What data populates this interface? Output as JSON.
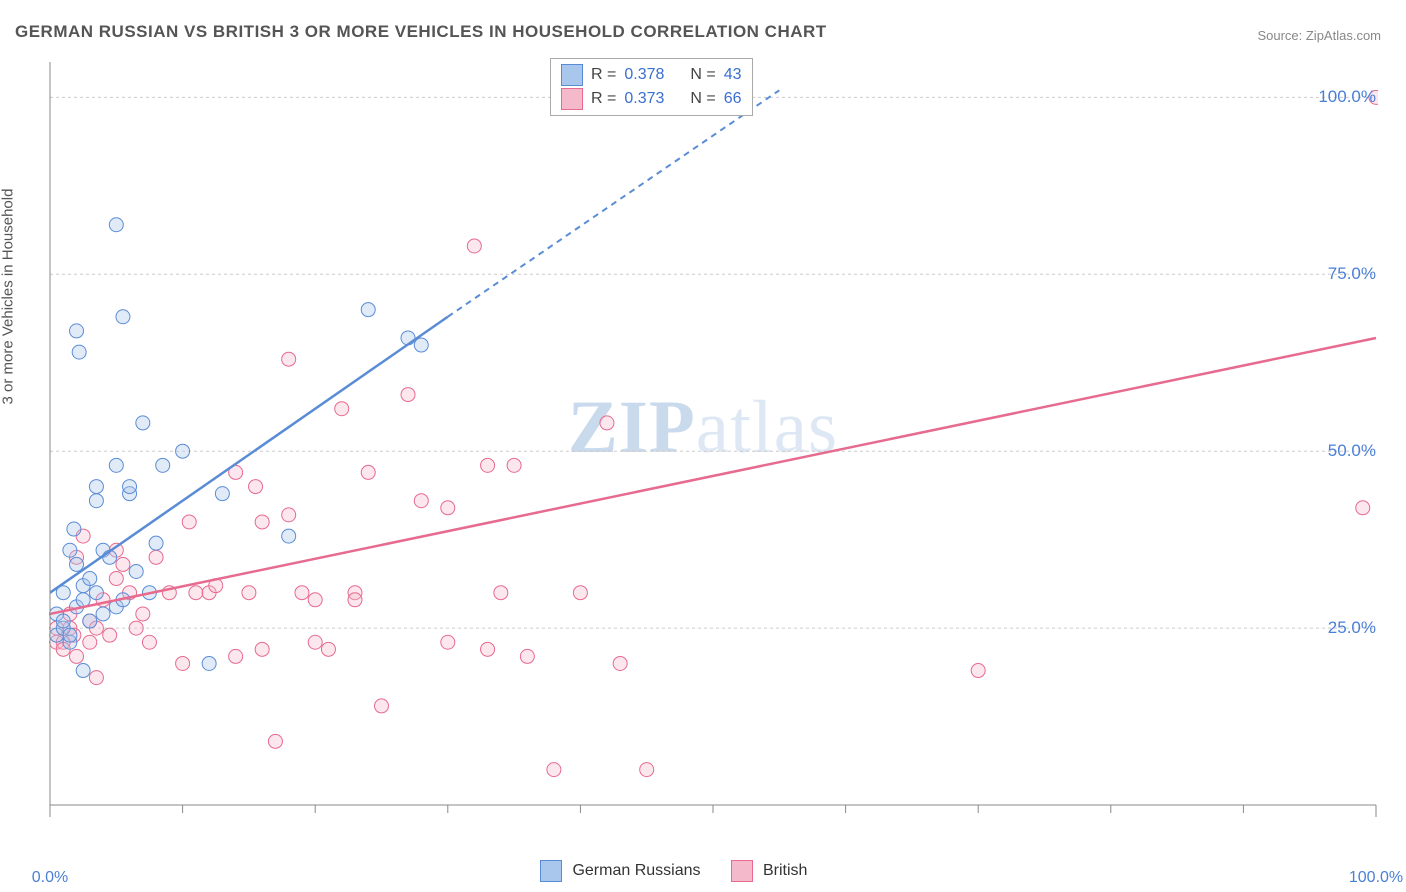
{
  "title": "GERMAN RUSSIAN VS BRITISH 3 OR MORE VEHICLES IN HOUSEHOLD CORRELATION CHART",
  "source_label": "Source: ZipAtlas.com",
  "ylabel": "3 or more Vehicles in Household",
  "watermark_a": "ZIP",
  "watermark_b": "atlas",
  "chart": {
    "type": "scatter",
    "xlim": [
      0,
      100
    ],
    "ylim": [
      0,
      105
    ],
    "x_ticks_major": [
      0,
      100
    ],
    "x_tick_labels": [
      "0.0%",
      "100.0%"
    ],
    "x_minor_ticks": [
      10,
      20,
      30,
      40,
      50,
      60,
      70,
      80,
      90
    ],
    "y_gridlines": [
      25,
      50,
      75,
      100
    ],
    "y_tick_labels": [
      "25.0%",
      "50.0%",
      "75.0%",
      "100.0%"
    ],
    "background_color": "#ffffff",
    "grid_color": "#cccccc",
    "axis_color": "#888888",
    "marker_radius": 7,
    "series": [
      {
        "name": "German Russians",
        "color_stroke": "#5a8cd6",
        "color_fill": "#a9c6ec",
        "r_value": "0.378",
        "n_value": "43",
        "trend": {
          "x1": 0,
          "y1": 30,
          "x2": 30,
          "y2": 69,
          "dashed_to_x": 55,
          "dashed_to_y": 101
        },
        "points": [
          [
            0.5,
            27
          ],
          [
            0.5,
            24
          ],
          [
            1,
            25
          ],
          [
            1,
            30
          ],
          [
            1,
            26
          ],
          [
            1.5,
            23
          ],
          [
            1.5,
            24
          ],
          [
            1.5,
            36
          ],
          [
            1.8,
            39
          ],
          [
            2,
            28
          ],
          [
            2,
            67
          ],
          [
            2,
            34
          ],
          [
            2.2,
            64
          ],
          [
            2.5,
            29
          ],
          [
            2.5,
            19
          ],
          [
            2.5,
            31
          ],
          [
            3,
            32
          ],
          [
            3,
            26
          ],
          [
            3.5,
            30
          ],
          [
            3.5,
            43
          ],
          [
            3.5,
            45
          ],
          [
            4,
            27
          ],
          [
            4,
            36
          ],
          [
            4.5,
            35
          ],
          [
            5,
            48
          ],
          [
            5,
            28
          ],
          [
            5,
            82
          ],
          [
            5.5,
            29
          ],
          [
            5.5,
            69
          ],
          [
            6,
            44
          ],
          [
            6,
            45
          ],
          [
            6.5,
            33
          ],
          [
            7,
            54
          ],
          [
            7.5,
            30
          ],
          [
            8,
            37
          ],
          [
            8.5,
            48
          ],
          [
            10,
            50
          ],
          [
            12,
            20
          ],
          [
            13,
            44
          ],
          [
            18,
            38
          ],
          [
            24,
            70
          ],
          [
            27,
            66
          ],
          [
            28,
            65
          ]
        ]
      },
      {
        "name": "British",
        "color_stroke": "#e76a8f",
        "color_fill": "#f4b9cb",
        "r_value": "0.373",
        "n_value": "66",
        "trend": {
          "x1": 0,
          "y1": 27,
          "x2": 100,
          "y2": 66
        },
        "points": [
          [
            0.5,
            25
          ],
          [
            0.5,
            23
          ],
          [
            1,
            23
          ],
          [
            1,
            22
          ],
          [
            1.5,
            27
          ],
          [
            1.5,
            25
          ],
          [
            1.8,
            24
          ],
          [
            2,
            21
          ],
          [
            2,
            35
          ],
          [
            2.5,
            38
          ],
          [
            3,
            26
          ],
          [
            3,
            23
          ],
          [
            3.5,
            25
          ],
          [
            3.5,
            18
          ],
          [
            4,
            29
          ],
          [
            4.5,
            24
          ],
          [
            5,
            32
          ],
          [
            5,
            36
          ],
          [
            5.5,
            34
          ],
          [
            6,
            30
          ],
          [
            6.5,
            25
          ],
          [
            7,
            27
          ],
          [
            7.5,
            23
          ],
          [
            8,
            35
          ],
          [
            9,
            30
          ],
          [
            10,
            20
          ],
          [
            10.5,
            40
          ],
          [
            11,
            30
          ],
          [
            12,
            30
          ],
          [
            12.5,
            31
          ],
          [
            14,
            21
          ],
          [
            14,
            47
          ],
          [
            15,
            30
          ],
          [
            15.5,
            45
          ],
          [
            16,
            22
          ],
          [
            16,
            40
          ],
          [
            17,
            9
          ],
          [
            18,
            41
          ],
          [
            18,
            63
          ],
          [
            19,
            30
          ],
          [
            20,
            23
          ],
          [
            20,
            29
          ],
          [
            21,
            22
          ],
          [
            22,
            56
          ],
          [
            23,
            30
          ],
          [
            23,
            29
          ],
          [
            24,
            47
          ],
          [
            25,
            14
          ],
          [
            27,
            58
          ],
          [
            28,
            43
          ],
          [
            30,
            42
          ],
          [
            30,
            23
          ],
          [
            32,
            79
          ],
          [
            33,
            22
          ],
          [
            33,
            48
          ],
          [
            34,
            30
          ],
          [
            35,
            48
          ],
          [
            36,
            21
          ],
          [
            38,
            5
          ],
          [
            40,
            30
          ],
          [
            42,
            54
          ],
          [
            43,
            20
          ],
          [
            45,
            5
          ],
          [
            70,
            19
          ],
          [
            99,
            42
          ],
          [
            100,
            100
          ]
        ]
      }
    ]
  },
  "legend_top_prefix_r": "R =",
  "legend_top_prefix_n": "N =",
  "legend_bottom": [
    "German Russians",
    "British"
  ]
}
